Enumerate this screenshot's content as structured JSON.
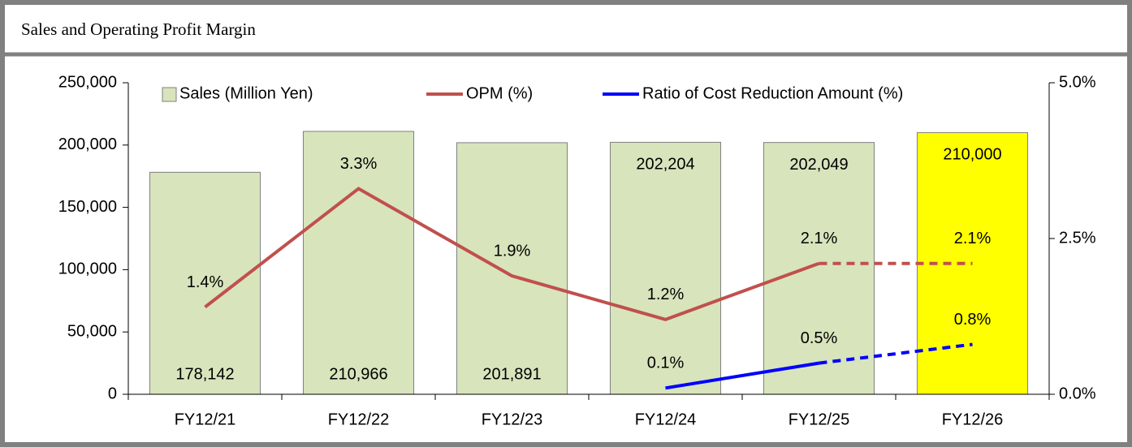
{
  "chart_data": {
    "type": "bar_line",
    "title": "Sales and Operating Profit Margin",
    "categories": [
      "FY12/21",
      "FY12/22",
      "FY12/23",
      "FY12/24",
      "FY12/25",
      "FY12/26"
    ],
    "ylim": [
      0,
      250000
    ],
    "yticks": [
      0,
      {
        "value": 50000,
        "label": "50,000"
      },
      {
        "value": 100000,
        "label": "100,000"
      },
      {
        "value": 150000,
        "label": "150,000"
      },
      {
        "value": 200000,
        "label": "200,000"
      },
      {
        "value": 250000,
        "label": "250,000"
      }
    ],
    "y2lim": [
      0,
      5
    ],
    "y2ticks": [
      {
        "value": 0,
        "label": "0.0%"
      },
      {
        "value": 2.5,
        "label": "2.5%"
      },
      {
        "value": 5,
        "label": "5.0%"
      }
    ],
    "legend": "top",
    "series": [
      {
        "name": "Sales (Million Yen)",
        "type": "bar",
        "color": "#d8e4bc",
        "colors": [
          "#d8e4bc",
          "#d8e4bc",
          "#d8e4bc",
          "#d8e4bc",
          "#d8e4bc",
          "#ffff00"
        ],
        "values": [
          178142,
          210966,
          201891,
          202204,
          202049,
          210000
        ],
        "value_labels": [
          "178,142",
          "210,966",
          "201,891",
          "202,204",
          "202,049",
          "210,000"
        ]
      },
      {
        "name": "OPM (%)",
        "type": "line",
        "axis": "y2",
        "color": "#c0504d",
        "dash_from": 4,
        "values": [
          1.4,
          3.3,
          1.9,
          1.2,
          2.1,
          2.1
        ],
        "value_labels": [
          "1.4%",
          "3.3%",
          "1.9%",
          "1.2%",
          "2.1%",
          "2.1%"
        ]
      },
      {
        "name": "Ratio of Cost Reduction Amount (%)",
        "type": "line",
        "axis": "y2",
        "color": "#0000ff",
        "dash_from": 4,
        "values": [
          null,
          null,
          null,
          0.1,
          0.5,
          0.8
        ],
        "value_labels": [
          null,
          null,
          null,
          "0.1%",
          "0.5%",
          "0.8%"
        ]
      }
    ]
  }
}
